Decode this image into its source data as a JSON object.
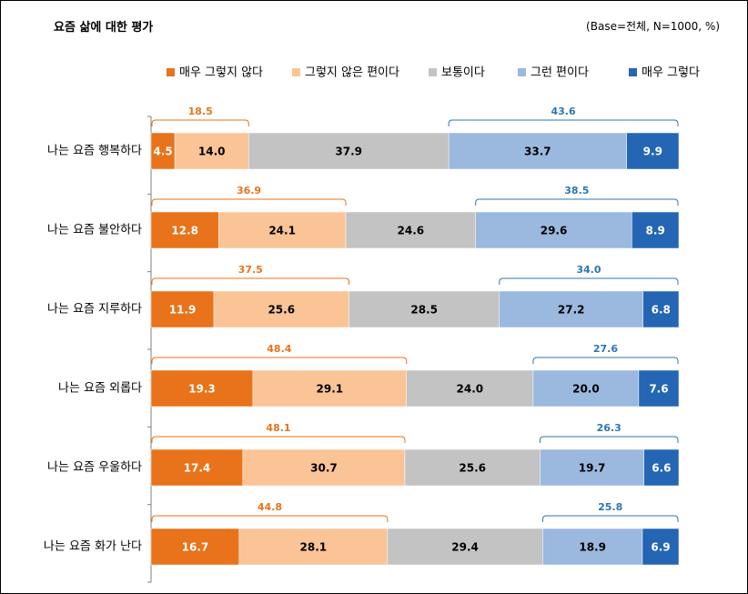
{
  "header": {
    "title": "요즘 삶에 대한 평가",
    "base_note": "(Base=전체, N=1000, %)"
  },
  "chart_data": {
    "type": "bar",
    "orientation": "horizontal",
    "stacked": true,
    "categories": [
      "나는 요즘 행복하다",
      "나는 요즘 불안하다",
      "나는 요즘 지루하다",
      "나는 요즘 외롭다",
      "나는 요즘 우울하다",
      "나는 요즘 화가 난다"
    ],
    "series": [
      {
        "name": "매우 그렇지 않다",
        "color": "#E8731A",
        "values": [
          4.5,
          12.8,
          11.9,
          19.3,
          17.4,
          16.7
        ]
      },
      {
        "name": "그렇지 않은 편이다",
        "color": "#FBC497",
        "values": [
          14.0,
          24.1,
          25.6,
          29.1,
          30.7,
          28.1
        ]
      },
      {
        "name": "보통이다",
        "color": "#C3C3C3",
        "values": [
          37.9,
          24.6,
          28.5,
          24.0,
          25.6,
          29.4
        ]
      },
      {
        "name": "그런 편이다",
        "color": "#9BB8DF",
        "values": [
          33.7,
          29.6,
          27.2,
          20.0,
          19.7,
          18.9
        ]
      },
      {
        "name": "매우 그렇다",
        "color": "#2466B4",
        "values": [
          9.9,
          8.9,
          6.8,
          7.6,
          6.6,
          6.9
        ]
      }
    ],
    "negative_sum": [
      18.5,
      36.9,
      37.5,
      48.4,
      48.1,
      44.8
    ],
    "positive_sum": [
      43.6,
      38.5,
      34.0,
      27.6,
      26.3,
      25.8
    ],
    "negative_color": "#E8731A",
    "positive_color": "#2E75B6",
    "legend_position": "top",
    "xlim": [
      0,
      100
    ],
    "grid": false
  }
}
